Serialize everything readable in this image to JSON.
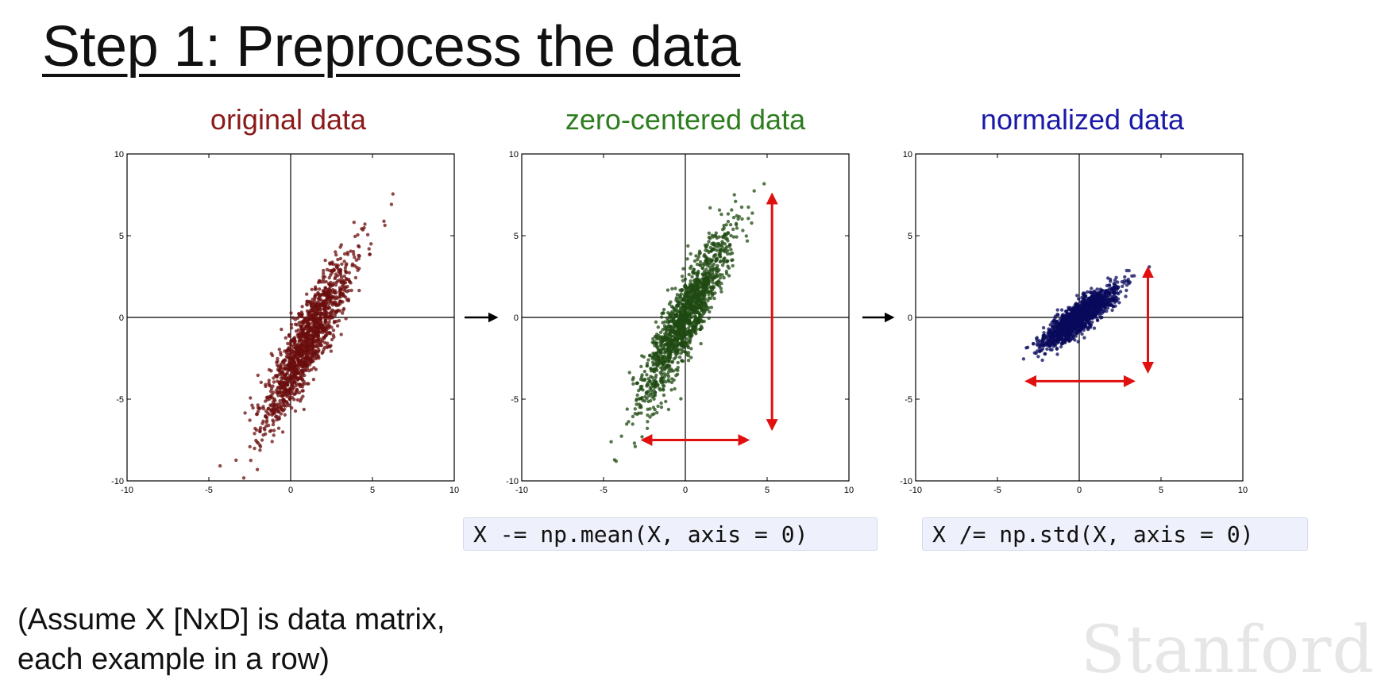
{
  "slide": {
    "title": "Step 1: Preprocess the data",
    "note_lines": [
      "(Assume X [NxD] is data matrix,",
      "each example in a row)"
    ],
    "wordmark": "Stanford",
    "code": {
      "mean": "X -= np.mean(X, axis = 0)",
      "std": "X /= np.std(X, axis = 0)"
    },
    "colors": {
      "original": "#8b1a1a",
      "zero_centered": "#2e7d1f",
      "normalized": "#1a1aa8",
      "arrow_red": "#e01010",
      "arrow_black": "#000000"
    }
  },
  "chart_data": [
    {
      "type": "scatter",
      "title": "original data",
      "title_color": "#8b1a1a",
      "point_color": "#6b0d0d",
      "xlim": [
        -10,
        10
      ],
      "ylim": [
        -10,
        10
      ],
      "xticks": [
        -10,
        -5,
        0,
        5,
        10
      ],
      "yticks": [
        -10,
        -5,
        0,
        5,
        10
      ],
      "x_tick_labels": [
        "-10",
        "-5",
        "0",
        "5",
        "10"
      ],
      "y_tick_labels": [
        "-10",
        "-5",
        "0",
        "5",
        "10"
      ],
      "cloud": {
        "mean_x": 1.0,
        "mean_y": -1.5,
        "std_major": 2.9,
        "std_minor": 0.55,
        "angle_deg": 64,
        "n_points": 1400
      }
    },
    {
      "type": "scatter",
      "title": "zero-centered data",
      "title_color": "#2e7d1f",
      "point_color": "#1f4a12",
      "xlim": [
        -10,
        10
      ],
      "ylim": [
        -10,
        10
      ],
      "xticks": [
        -10,
        -5,
        0,
        5,
        10
      ],
      "yticks": [
        -10,
        -5,
        0,
        5,
        10
      ],
      "x_tick_labels": [
        "-10",
        "-5",
        "0",
        "5",
        "10"
      ],
      "y_tick_labels": [
        "-10",
        "-5",
        "0",
        "5",
        "10"
      ],
      "cloud": {
        "mean_x": 0.0,
        "mean_y": 0.0,
        "std_major": 2.9,
        "std_minor": 0.55,
        "angle_deg": 64,
        "n_points": 1400
      },
      "spread_arrows": {
        "vertical": {
          "x": 5.3,
          "y1": -6.8,
          "y2": 7.5
        },
        "horizontal": {
          "y": -7.5,
          "x1": -2.6,
          "x2": 3.8
        }
      }
    },
    {
      "type": "scatter",
      "title": "normalized data",
      "title_color": "#1a1aa8",
      "point_color": "#0a0a5c",
      "xlim": [
        -10,
        10
      ],
      "ylim": [
        -10,
        10
      ],
      "xticks": [
        -10,
        -5,
        0,
        5,
        10
      ],
      "yticks": [
        -10,
        -5,
        0,
        5,
        10
      ],
      "x_tick_labels": [
        "-10",
        "-5",
        "0",
        "5",
        "10"
      ],
      "y_tick_labels": [
        "-10",
        "-5",
        "0",
        "5",
        "10"
      ],
      "cloud": {
        "mean_x": 0.0,
        "mean_y": 0.0,
        "std_major": 1.35,
        "std_minor": 0.38,
        "angle_deg": 38,
        "n_points": 1400
      },
      "spread_arrows": {
        "vertical": {
          "x": 4.2,
          "y1": -3.3,
          "y2": 3.0
        },
        "horizontal": {
          "y": -3.9,
          "x1": -3.2,
          "x2": 3.3
        }
      }
    }
  ]
}
